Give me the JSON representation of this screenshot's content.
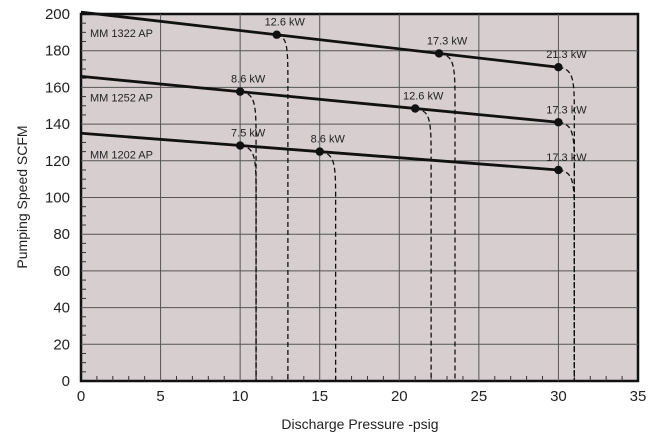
{
  "chart_data": {
    "type": "line",
    "xlabel": "Discharge Pressure -psig",
    "ylabel": "Pumping Speed SCFM",
    "xlim": [
      0,
      35
    ],
    "ylim": [
      0,
      200
    ],
    "xticks": [
      "0",
      "5",
      "10",
      "15",
      "20",
      "25",
      "30",
      "35"
    ],
    "yticks": [
      "0",
      "20",
      "40",
      "60",
      "80",
      "100",
      "120",
      "140",
      "160",
      "180",
      "200"
    ],
    "grid": true,
    "background": "#d7ced0",
    "line_color": "#111111",
    "series": [
      {
        "name": "MM 1322 AP",
        "line": [
          [
            0,
            201
          ],
          [
            30,
            171
          ]
        ],
        "points": [
          {
            "x": 12.3,
            "y": 188.7,
            "label": "12.6 kW",
            "limit_x": 13.0
          },
          {
            "x": 22.5,
            "y": 178.5,
            "label": "17.3 kW",
            "limit_x": 23.5
          },
          {
            "x": 30,
            "y": 171,
            "label": "21.3 kW",
            "limit_x": 31.0
          }
        ]
      },
      {
        "name": "MM 1252 AP",
        "line": [
          [
            0,
            166
          ],
          [
            30,
            141
          ]
        ],
        "points": [
          {
            "x": 10,
            "y": 157.7,
            "label": "8.6 kW",
            "limit_x": 11.0
          },
          {
            "x": 21,
            "y": 148.5,
            "label": "12.6 kW",
            "limit_x": 22.0
          },
          {
            "x": 30,
            "y": 141,
            "label": "17.3 kW",
            "limit_x": 31.0
          }
        ]
      },
      {
        "name": "MM 1202 AP",
        "line": [
          [
            0,
            135
          ],
          [
            30,
            115
          ]
        ],
        "points": [
          {
            "x": 10,
            "y": 128.3,
            "label": "7.5 kW",
            "limit_x": 11.0
          },
          {
            "x": 15,
            "y": 125,
            "label": "8.6 kW",
            "limit_x": 16.0
          },
          {
            "x": 30,
            "y": 115,
            "label": "17.3 kW",
            "limit_x": 31.0
          }
        ]
      }
    ]
  }
}
